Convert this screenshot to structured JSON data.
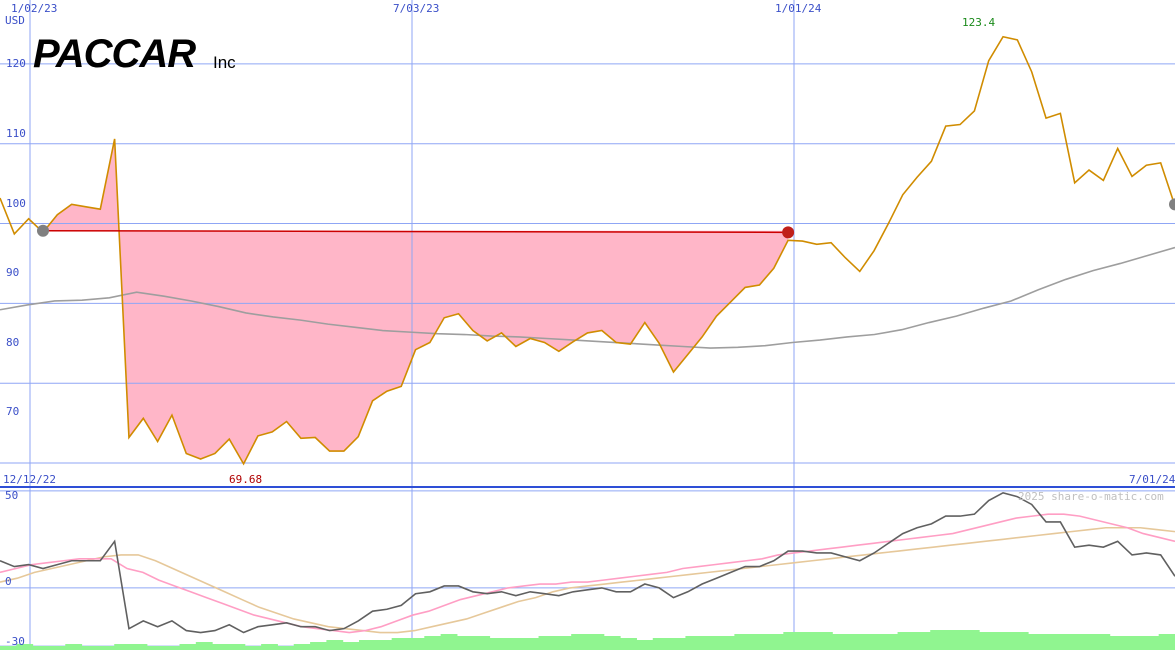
{
  "logo": {
    "name": "PACCAR",
    "suffix": "Inc"
  },
  "copyright": "2025 share-o-matic.com",
  "colors": {
    "price": "#d08c00",
    "sma": "#9e9e9e",
    "up_fill": "#90f590",
    "down_fill": "#ffb6c8",
    "up_line": "#228b22",
    "down_line": "#cc0000",
    "grid": "#8fa6f5",
    "axis_text": "#3a4fc8",
    "osc_dark": "#606060",
    "osc_pink": "#ff9ec4",
    "osc_tan": "#e6c89a",
    "volume": "#90f590"
  },
  "chart_data": [
    {
      "type": "line",
      "x_labels_top": [
        "1/02/23",
        "7/03/23",
        "1/01/24"
      ],
      "x_labels_bottom": [
        "12/12/22",
        "7/01/24"
      ],
      "y_unit": "USD",
      "y_ticks": [
        70,
        80,
        90,
        100,
        110,
        120
      ],
      "ylim": [
        67,
        128
      ],
      "annotations": {
        "max": "123.4",
        "min": "69.68"
      },
      "series": [
        {
          "role": "price",
          "values": [
            103.2,
            98.7,
            100.6,
            98.9,
            101.1,
            102.4,
            102.1,
            101.8,
            110.6,
            73.2,
            75.6,
            72.7,
            76,
            71.2,
            70.5,
            71.2,
            73,
            69.9,
            73.4,
            73.9,
            75.2,
            73.1,
            73.2,
            71.5,
            71.5,
            73.3,
            77.8,
            79,
            79.6,
            84.2,
            85.1,
            88.2,
            88.7,
            86.6,
            85.3,
            86.3,
            84.6,
            85.6,
            85.1,
            84,
            85.2,
            86.3,
            86.6,
            85.1,
            84.9,
            87.6,
            85,
            81.4,
            83.6,
            85.8,
            88.4,
            90.2,
            92,
            92.3,
            94.4,
            97.9,
            97.8,
            97.4,
            97.6,
            95.7,
            94,
            96.6,
            100,
            103.6,
            105.8,
            107.8,
            112.2,
            112.4,
            114.1,
            120.4,
            123.4,
            123,
            119,
            113.2,
            113.8,
            105.1,
            106.7,
            105.4,
            109.4,
            105.9,
            107.3,
            107.6,
            102.2
          ]
        },
        {
          "role": "moving-average",
          "values": [
            89.2,
            89.8,
            90.3,
            90.4,
            90.7,
            91.4,
            90.9,
            90.3,
            89.6,
            88.8,
            88.3,
            87.9,
            87.4,
            87,
            86.6,
            86.4,
            86.2,
            86.1,
            85.9,
            85.8,
            85.6,
            85.4,
            85.2,
            85,
            84.8,
            84.6,
            84.4,
            84.5,
            84.7,
            85.1,
            85.4,
            85.8,
            86.1,
            86.7,
            87.6,
            88.4,
            89.4,
            90.3,
            91.7,
            93,
            94.1,
            95,
            96,
            97
          ]
        }
      ],
      "trades": [
        {
          "entry": 99.1,
          "exit": 98.9,
          "result": "loss"
        },
        {
          "entry": 102.4,
          "exit": 101.8,
          "result": "loss"
        },
        {
          "entry": 110.6,
          "exit": 73.2,
          "result": "loss"
        },
        {
          "entry": 77.8,
          "exit": 84.8,
          "result": "gain"
        },
        {
          "entry": 87.6,
          "exit": 84.9,
          "result": "loss"
        },
        {
          "entry": 92,
          "exit": 112.4,
          "result": "gain"
        }
      ]
    },
    {
      "type": "line",
      "y_ticks": [
        50,
        0,
        -30
      ],
      "ylim": [
        -32,
        52
      ],
      "series": [
        {
          "role": "oscillator",
          "values": [
            14,
            11,
            12,
            10,
            12,
            14,
            14,
            14,
            24,
            -21,
            -17,
            -20,
            -17,
            -22,
            -23,
            -22,
            -19,
            -23,
            -20,
            -19,
            -18,
            -20,
            -20,
            -22,
            -21,
            -17,
            -12,
            -11,
            -9,
            -3,
            -2,
            1,
            1,
            -2,
            -3,
            -2,
            -4,
            -2,
            -3,
            -4,
            -2,
            -1,
            0,
            -2,
            -2,
            2,
            0,
            -5,
            -2,
            2,
            5,
            8,
            11,
            11,
            14,
            19,
            19,
            18,
            18,
            16,
            14,
            18,
            23,
            28,
            31,
            33,
            37,
            37,
            38,
            45,
            49,
            47,
            43,
            34,
            34,
            21,
            22,
            21,
            24,
            17,
            18,
            17,
            6
          ]
        },
        {
          "role": "signal-fast",
          "values": [
            8,
            10,
            12,
            13,
            14,
            15,
            15,
            15,
            10,
            8,
            4,
            1,
            -2,
            -5,
            -8,
            -11,
            -14,
            -16,
            -18,
            -20,
            -21,
            -22,
            -23,
            -22,
            -20,
            -17,
            -14,
            -12,
            -9,
            -6,
            -4,
            -2,
            0,
            1,
            2,
            2,
            3,
            3,
            4,
            5,
            6,
            7,
            8,
            10,
            11,
            12,
            13,
            14,
            15,
            17,
            18,
            19,
            20,
            21,
            22,
            23,
            24,
            25,
            26,
            27,
            28,
            30,
            32,
            34,
            36,
            37,
            38,
            38,
            37,
            35,
            33,
            31,
            28,
            26,
            24
          ]
        },
        {
          "role": "signal-slow",
          "values": [
            3,
            5,
            8,
            10,
            12,
            14,
            16,
            17,
            17,
            14,
            10,
            6,
            2,
            -2,
            -6,
            -10,
            -13,
            -16,
            -18,
            -20,
            -21,
            -22,
            -23,
            -23,
            -22,
            -20,
            -18,
            -16,
            -13,
            -10,
            -7,
            -5,
            -2,
            0,
            1,
            2,
            3,
            4,
            5,
            6,
            7,
            8,
            9,
            10,
            11,
            12,
            13,
            14,
            15,
            16,
            17,
            18,
            19,
            20,
            21,
            22,
            23,
            24,
            25,
            26,
            27,
            28,
            29,
            30,
            31,
            31,
            31,
            30,
            29
          ]
        },
        {
          "role": "volume",
          "values": [
            2,
            3,
            2,
            2,
            3,
            2,
            2,
            3,
            3,
            2,
            2,
            3,
            4,
            3,
            3,
            2,
            3,
            2,
            3,
            4,
            5,
            4,
            5,
            5,
            6,
            6,
            7,
            8,
            7,
            7,
            6,
            6,
            6,
            7,
            7,
            8,
            8,
            7,
            6,
            5,
            6,
            6,
            7,
            7,
            7,
            8,
            8,
            8,
            9,
            9,
            9,
            8,
            8,
            8,
            8,
            9,
            9,
            10,
            10,
            10,
            9,
            9,
            9,
            8,
            8,
            8,
            8,
            8,
            7,
            7,
            7,
            8
          ]
        }
      ]
    }
  ]
}
